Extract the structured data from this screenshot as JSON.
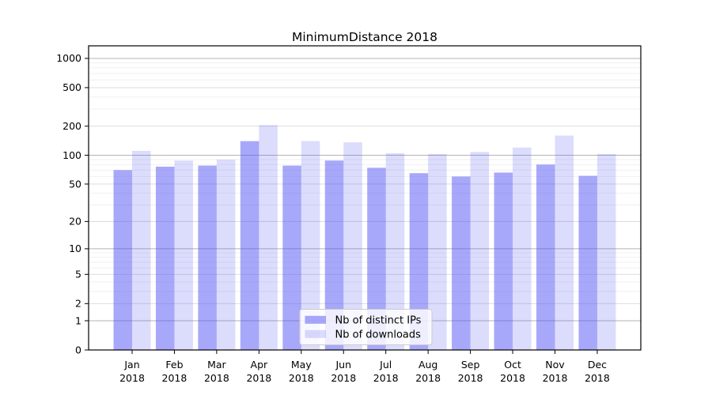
{
  "figure": {
    "title": "MinimumDistance 2018"
  },
  "chart_data": {
    "type": "bar",
    "title": "MinimumDistance 2018",
    "categories": [
      "Jan",
      "Feb",
      "Mar",
      "Apr",
      "May",
      "Jun",
      "Jul",
      "Aug",
      "Sep",
      "Oct",
      "Nov",
      "Dec"
    ],
    "year_label": "2018",
    "series": [
      {
        "name": "Nb of distinct IPs",
        "color": "rgba(82,82,245,0.5)",
        "values": [
          70,
          76,
          78,
          140,
          78,
          88,
          74,
          65,
          60,
          66,
          80,
          61
        ]
      },
      {
        "name": "Nb of downloads",
        "color": "rgba(82,82,245,0.2)",
        "values": [
          111,
          88,
          90,
          205,
          140,
          136,
          105,
          103,
          108,
          120,
          160,
          103
        ]
      }
    ],
    "yscale": "symlog (log10(1+v))",
    "yticks": [
      0,
      1,
      2,
      5,
      10,
      20,
      50,
      100,
      200,
      500,
      1000
    ],
    "ylim": [
      0,
      1350
    ],
    "xlabel": "",
    "ylabel": "",
    "grid": true,
    "legend": {
      "position": "lower center"
    },
    "style": {
      "bar_base_color": "#5252f5",
      "grid_major_color": "#b3b3b3",
      "grid_labeled_color": "#d9d9d9",
      "grid_minor_color": "#ededed",
      "axis_color": "#000000",
      "text_color": "#000000",
      "background": "#ffffff",
      "legend_border": "#cccccc"
    }
  }
}
